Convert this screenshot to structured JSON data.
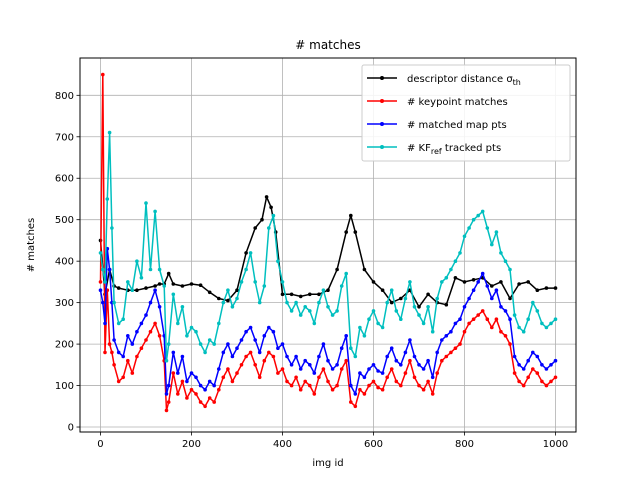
{
  "chart_data": {
    "type": "line",
    "title": "# matches",
    "xlabel": "img id",
    "ylabel": "# matches",
    "xlim": [
      -45,
      1045
    ],
    "ylim": [
      -12,
      890
    ],
    "x_ticks": [
      0,
      200,
      400,
      600,
      800,
      1000
    ],
    "x_tick_labels": [
      "0",
      "200",
      "400",
      "600",
      "800",
      "1000"
    ],
    "y_ticks": [
      0,
      100,
      200,
      300,
      400,
      500,
      600,
      700,
      800
    ],
    "y_tick_labels": [
      "0",
      "100",
      "200",
      "300",
      "400",
      "500",
      "600",
      "700",
      "800"
    ],
    "grid": true,
    "legend_position": "upper-right",
    "legend": [
      {
        "prefix": "descriptor distance σ",
        "sub": "th",
        "suffix": "",
        "color": "#000000"
      },
      {
        "prefix": "# keypoint matches",
        "sub": "",
        "suffix": "",
        "color": "#ff0000"
      },
      {
        "prefix": "# matched map pts",
        "sub": "",
        "suffix": "",
        "color": "#0000ff"
      },
      {
        "prefix": "# KF",
        "sub": "ref",
        "suffix": "  tracked pts",
        "color": "#00bfbf"
      }
    ],
    "series": [
      {
        "color": "#000000",
        "x": [
          0,
          10,
          20,
          30,
          40,
          60,
          80,
          100,
          120,
          130,
          140,
          150,
          160,
          180,
          200,
          220,
          240,
          260,
          280,
          300,
          320,
          340,
          355,
          365,
          375,
          385,
          400,
          420,
          440,
          460,
          480,
          500,
          520,
          540,
          550,
          560,
          580,
          600,
          620,
          640,
          660,
          680,
          700,
          720,
          740,
          760,
          780,
          800,
          820,
          840,
          860,
          880,
          900,
          920,
          940,
          960,
          980,
          1000
        ],
        "y": [
          450,
          320,
          380,
          340,
          335,
          330,
          330,
          335,
          340,
          345,
          345,
          370,
          345,
          340,
          345,
          342,
          325,
          310,
          305,
          330,
          420,
          480,
          500,
          555,
          530,
          470,
          320,
          320,
          315,
          320,
          320,
          330,
          380,
          470,
          510,
          470,
          380,
          350,
          330,
          300,
          310,
          330,
          290,
          320,
          300,
          295,
          360,
          350,
          355,
          360,
          340,
          350,
          310,
          345,
          350,
          330,
          335,
          335
        ]
      },
      {
        "color": "#ff0000",
        "x": [
          0,
          5,
          10,
          15,
          20,
          25,
          30,
          40,
          50,
          60,
          70,
          80,
          90,
          100,
          110,
          120,
          130,
          140,
          145,
          150,
          160,
          170,
          180,
          190,
          200,
          210,
          220,
          230,
          240,
          250,
          260,
          270,
          280,
          290,
          300,
          310,
          320,
          330,
          340,
          350,
          360,
          370,
          380,
          390,
          400,
          410,
          420,
          430,
          440,
          450,
          460,
          470,
          480,
          490,
          500,
          510,
          520,
          530,
          540,
          550,
          560,
          570,
          580,
          590,
          600,
          610,
          620,
          630,
          640,
          650,
          660,
          670,
          680,
          690,
          700,
          710,
          720,
          730,
          740,
          750,
          760,
          770,
          780,
          790,
          800,
          810,
          820,
          830,
          840,
          850,
          860,
          870,
          880,
          890,
          900,
          910,
          920,
          930,
          940,
          950,
          960,
          970,
          980,
          990,
          1000
        ],
        "y": [
          350,
          850,
          180,
          330,
          200,
          180,
          150,
          110,
          120,
          160,
          130,
          170,
          190,
          210,
          230,
          250,
          220,
          160,
          40,
          60,
          130,
          80,
          110,
          70,
          90,
          80,
          60,
          50,
          70,
          60,
          90,
          120,
          140,
          110,
          130,
          150,
          170,
          180,
          150,
          120,
          160,
          180,
          170,
          130,
          140,
          110,
          100,
          120,
          90,
          110,
          100,
          80,
          120,
          140,
          110,
          90,
          100,
          140,
          160,
          60,
          50,
          90,
          80,
          100,
          110,
          95,
          90,
          120,
          140,
          110,
          100,
          130,
          160,
          120,
          100,
          90,
          110,
          80,
          130,
          160,
          170,
          180,
          190,
          200,
          230,
          250,
          260,
          270,
          280,
          260,
          240,
          260,
          230,
          220,
          200,
          130,
          110,
          100,
          120,
          140,
          130,
          110,
          100,
          110,
          120
        ]
      },
      {
        "color": "#0000ff",
        "x": [
          0,
          5,
          10,
          15,
          20,
          25,
          30,
          40,
          50,
          60,
          70,
          80,
          90,
          100,
          110,
          120,
          130,
          140,
          145,
          150,
          160,
          170,
          180,
          190,
          200,
          210,
          220,
          230,
          240,
          250,
          260,
          270,
          280,
          290,
          300,
          310,
          320,
          330,
          340,
          350,
          360,
          370,
          380,
          390,
          400,
          410,
          420,
          430,
          440,
          450,
          460,
          470,
          480,
          490,
          500,
          510,
          520,
          530,
          540,
          550,
          560,
          570,
          580,
          590,
          600,
          610,
          620,
          630,
          640,
          650,
          660,
          670,
          680,
          690,
          700,
          710,
          720,
          730,
          740,
          750,
          760,
          770,
          780,
          790,
          800,
          810,
          820,
          830,
          840,
          850,
          860,
          870,
          880,
          890,
          900,
          910,
          920,
          930,
          940,
          950,
          960,
          970,
          980,
          990,
          1000
        ],
        "y": [
          330,
          300,
          250,
          430,
          380,
          300,
          210,
          180,
          170,
          220,
          200,
          230,
          250,
          270,
          300,
          330,
          290,
          220,
          80,
          100,
          180,
          130,
          170,
          110,
          130,
          120,
          100,
          90,
          110,
          100,
          140,
          180,
          200,
          170,
          190,
          210,
          230,
          240,
          210,
          180,
          220,
          240,
          230,
          190,
          200,
          170,
          150,
          170,
          140,
          160,
          150,
          130,
          170,
          200,
          160,
          140,
          150,
          190,
          220,
          100,
          80,
          130,
          120,
          140,
          150,
          135,
          130,
          170,
          190,
          160,
          150,
          180,
          210,
          170,
          150,
          140,
          160,
          120,
          180,
          210,
          220,
          230,
          250,
          260,
          290,
          310,
          330,
          350,
          370,
          340,
          310,
          330,
          290,
          280,
          260,
          170,
          150,
          140,
          160,
          180,
          170,
          150,
          140,
          150,
          160
        ]
      },
      {
        "color": "#00bfbf",
        "x": [
          0,
          5,
          10,
          15,
          20,
          25,
          30,
          40,
          50,
          60,
          70,
          80,
          90,
          100,
          110,
          120,
          130,
          140,
          145,
          150,
          160,
          170,
          180,
          190,
          200,
          210,
          220,
          230,
          240,
          250,
          260,
          270,
          280,
          290,
          300,
          310,
          320,
          330,
          340,
          350,
          360,
          370,
          380,
          390,
          400,
          410,
          420,
          430,
          440,
          450,
          460,
          470,
          480,
          490,
          500,
          510,
          520,
          530,
          540,
          550,
          560,
          570,
          580,
          590,
          600,
          610,
          620,
          630,
          640,
          650,
          660,
          670,
          680,
          690,
          700,
          710,
          720,
          730,
          740,
          750,
          760,
          770,
          780,
          790,
          800,
          810,
          820,
          830,
          840,
          850,
          860,
          870,
          880,
          890,
          900,
          910,
          920,
          930,
          940,
          950,
          960,
          970,
          980,
          990,
          1000
        ],
        "y": [
          420,
          380,
          350,
          550,
          710,
          480,
          300,
          250,
          260,
          350,
          330,
          400,
          360,
          540,
          380,
          520,
          380,
          340,
          160,
          200,
          320,
          250,
          290,
          220,
          240,
          230,
          200,
          180,
          210,
          200,
          250,
          300,
          330,
          290,
          310,
          350,
          380,
          420,
          350,
          300,
          340,
          480,
          510,
          400,
          350,
          300,
          280,
          300,
          270,
          290,
          280,
          250,
          300,
          330,
          290,
          270,
          280,
          340,
          370,
          190,
          170,
          240,
          220,
          260,
          280,
          250,
          240,
          300,
          330,
          280,
          260,
          310,
          350,
          290,
          270,
          250,
          290,
          230,
          310,
          350,
          360,
          380,
          400,
          420,
          460,
          480,
          500,
          510,
          520,
          480,
          440,
          470,
          420,
          400,
          380,
          270,
          240,
          230,
          260,
          300,
          280,
          250,
          240,
          250,
          260
        ]
      }
    ]
  }
}
